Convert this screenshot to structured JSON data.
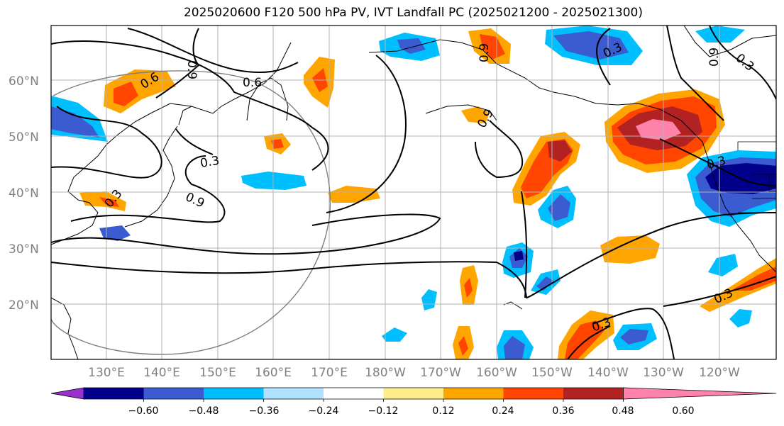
{
  "title": "2025020600 F120 500 hPa PV, IVT Landfall PC (2025021200 - 2025021300)",
  "lat_ticks": [
    "60°N",
    "50°N",
    "40°N",
    "30°N",
    "20°N"
  ],
  "lon_ticks": [
    "130°E",
    "140°E",
    "150°E",
    "160°E",
    "170°E",
    "180°W",
    "170°W",
    "160°W",
    "150°W",
    "140°W",
    "130°W",
    "120°W"
  ],
  "colorbar": {
    "ticks": [
      "−0.60",
      "−0.48",
      "−0.36",
      "−0.24",
      "−0.12",
      "0.12",
      "0.24",
      "0.36",
      "0.48",
      "0.60"
    ],
    "colors": [
      "#9932cc",
      "#00008b",
      "#3b5bd0",
      "#00bfff",
      "#b0e2ff",
      "#ffffff",
      "#ffec8b",
      "#ffa500",
      "#ff4500",
      "#b22222",
      "#ff82ab"
    ]
  },
  "contour_labels": [
    "0.6",
    "0.9",
    "0.6",
    "0.3",
    "0.9",
    "0.3",
    "0.3",
    "0.9",
    "0.3",
    "0.3",
    "0.3",
    "0.9",
    "0.3",
    "0.9"
  ]
}
